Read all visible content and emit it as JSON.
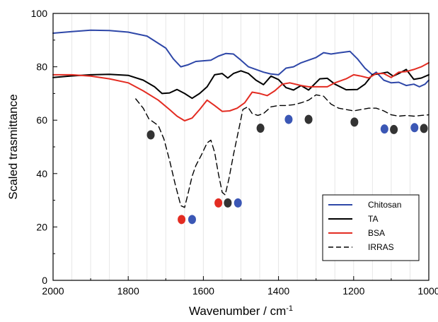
{
  "chart_data": {
    "type": "line",
    "xlabel": "Wavenumber / cm",
    "xlabel_superscript": "-1",
    "ylabel": "Scaled trasmittance",
    "xlim": [
      2000,
      1000
    ],
    "ylim": [
      0,
      100
    ],
    "x_reversed": true,
    "grid": "vertical lines every 50 cm-1",
    "legend_position": "bottom-right",
    "x_ticks": [
      "2000",
      "1800",
      "1600",
      "1400",
      "1200",
      "1000"
    ],
    "y_ticks": [
      "0",
      "20",
      "40",
      "60",
      "80",
      "100"
    ],
    "series": [
      {
        "name": "Chitosan",
        "color": "#2e47a8",
        "dash": "solid",
        "points": [
          [
            2000,
            92.6
          ],
          [
            1950,
            93.2
          ],
          [
            1900,
            93.7
          ],
          [
            1850,
            93.6
          ],
          [
            1800,
            93.0
          ],
          [
            1750,
            91.5
          ],
          [
            1700,
            87.0
          ],
          [
            1680,
            83.0
          ],
          [
            1660,
            80.0
          ],
          [
            1640,
            80.8
          ],
          [
            1620,
            82.0
          ],
          [
            1580,
            82.5
          ],
          [
            1560,
            84.0
          ],
          [
            1540,
            85.0
          ],
          [
            1520,
            84.8
          ],
          [
            1500,
            82.5
          ],
          [
            1480,
            80.0
          ],
          [
            1440,
            78.0
          ],
          [
            1420,
            77.3
          ],
          [
            1400,
            77.0
          ],
          [
            1380,
            79.5
          ],
          [
            1360,
            80.0
          ],
          [
            1340,
            81.5
          ],
          [
            1320,
            82.5
          ],
          [
            1300,
            83.5
          ],
          [
            1280,
            85.3
          ],
          [
            1260,
            84.8
          ],
          [
            1240,
            85.2
          ],
          [
            1210,
            85.8
          ],
          [
            1190,
            83.0
          ],
          [
            1170,
            79.5
          ],
          [
            1150,
            77.0
          ],
          [
            1140,
            78.0
          ],
          [
            1120,
            75.0
          ],
          [
            1100,
            74.0
          ],
          [
            1080,
            74.2
          ],
          [
            1060,
            73.0
          ],
          [
            1040,
            73.5
          ],
          [
            1025,
            72.5
          ],
          [
            1010,
            73.5
          ],
          [
            1000,
            75.0
          ]
        ]
      },
      {
        "name": "TA",
        "color": "#000000",
        "dash": "solid",
        "points": [
          [
            2000,
            76.0
          ],
          [
            1950,
            76.6
          ],
          [
            1900,
            77.0
          ],
          [
            1850,
            77.2
          ],
          [
            1800,
            76.8
          ],
          [
            1760,
            75.0
          ],
          [
            1730,
            72.5
          ],
          [
            1710,
            70.0
          ],
          [
            1690,
            70.2
          ],
          [
            1670,
            71.5
          ],
          [
            1650,
            70.0
          ],
          [
            1630,
            68.2
          ],
          [
            1610,
            70.0
          ],
          [
            1590,
            72.5
          ],
          [
            1570,
            77.0
          ],
          [
            1550,
            77.5
          ],
          [
            1535,
            75.8
          ],
          [
            1520,
            77.5
          ],
          [
            1500,
            78.5
          ],
          [
            1480,
            77.5
          ],
          [
            1460,
            75.0
          ],
          [
            1440,
            73.3
          ],
          [
            1420,
            76.5
          ],
          [
            1400,
            75.2
          ],
          [
            1380,
            72.2
          ],
          [
            1360,
            71.3
          ],
          [
            1340,
            73.0
          ],
          [
            1320,
            71.3
          ],
          [
            1290,
            75.5
          ],
          [
            1270,
            75.7
          ],
          [
            1250,
            73.5
          ],
          [
            1220,
            71.4
          ],
          [
            1190,
            71.5
          ],
          [
            1170,
            73.5
          ],
          [
            1150,
            77.0
          ],
          [
            1130,
            77.5
          ],
          [
            1110,
            78.0
          ],
          [
            1095,
            76.5
          ],
          [
            1080,
            77.5
          ],
          [
            1060,
            79.0
          ],
          [
            1040,
            75.3
          ],
          [
            1020,
            75.8
          ],
          [
            1000,
            77.0
          ]
        ]
      },
      {
        "name": "BSA",
        "color": "#e32c22",
        "dash": "solid",
        "points": [
          [
            2000,
            77.0
          ],
          [
            1950,
            77.0
          ],
          [
            1900,
            76.5
          ],
          [
            1850,
            75.5
          ],
          [
            1800,
            74.0
          ],
          [
            1760,
            71.0
          ],
          [
            1720,
            67.5
          ],
          [
            1690,
            64.0
          ],
          [
            1670,
            61.5
          ],
          [
            1650,
            59.8
          ],
          [
            1630,
            60.8
          ],
          [
            1610,
            64.0
          ],
          [
            1590,
            67.5
          ],
          [
            1570,
            65.5
          ],
          [
            1550,
            63.3
          ],
          [
            1530,
            63.5
          ],
          [
            1510,
            64.5
          ],
          [
            1490,
            66.5
          ],
          [
            1470,
            70.5
          ],
          [
            1450,
            70.0
          ],
          [
            1430,
            69.2
          ],
          [
            1410,
            71.0
          ],
          [
            1390,
            73.5
          ],
          [
            1370,
            74.0
          ],
          [
            1340,
            73.0
          ],
          [
            1320,
            72.5
          ],
          [
            1290,
            72.5
          ],
          [
            1270,
            72.5
          ],
          [
            1250,
            74.0
          ],
          [
            1220,
            75.5
          ],
          [
            1200,
            77.0
          ],
          [
            1180,
            76.5
          ],
          [
            1160,
            75.8
          ],
          [
            1140,
            77.5
          ],
          [
            1120,
            77.5
          ],
          [
            1100,
            76.0
          ],
          [
            1080,
            78.0
          ],
          [
            1060,
            78.2
          ],
          [
            1040,
            79.0
          ],
          [
            1020,
            80.0
          ],
          [
            1000,
            81.5
          ]
        ]
      },
      {
        "name": "IRRAS",
        "color": "#000000",
        "dash": "dashed",
        "points": [
          [
            1780,
            68.0
          ],
          [
            1760,
            64.5
          ],
          [
            1745,
            60.5
          ],
          [
            1735,
            59.5
          ],
          [
            1720,
            58.0
          ],
          [
            1705,
            53.0
          ],
          [
            1690,
            45.0
          ],
          [
            1675,
            36.0
          ],
          [
            1660,
            28.0
          ],
          [
            1650,
            27.3
          ],
          [
            1640,
            33.0
          ],
          [
            1630,
            39.0
          ],
          [
            1620,
            43.0
          ],
          [
            1605,
            47.0
          ],
          [
            1590,
            51.5
          ],
          [
            1580,
            52.5
          ],
          [
            1570,
            48.0
          ],
          [
            1560,
            40.0
          ],
          [
            1550,
            33.0
          ],
          [
            1542,
            32.0
          ],
          [
            1532,
            38.0
          ],
          [
            1520,
            47.0
          ],
          [
            1505,
            57.0
          ],
          [
            1495,
            64.0
          ],
          [
            1482,
            65.0
          ],
          [
            1470,
            62.5
          ],
          [
            1455,
            61.8
          ],
          [
            1440,
            62.5
          ],
          [
            1420,
            65.0
          ],
          [
            1400,
            65.5
          ],
          [
            1380,
            65.5
          ],
          [
            1360,
            65.8
          ],
          [
            1340,
            66.5
          ],
          [
            1320,
            67.5
          ],
          [
            1300,
            69.5
          ],
          [
            1280,
            69.0
          ],
          [
            1260,
            66.0
          ],
          [
            1240,
            64.5
          ],
          [
            1220,
            64.0
          ],
          [
            1200,
            63.5
          ],
          [
            1180,
            64.0
          ],
          [
            1160,
            64.5
          ],
          [
            1140,
            64.5
          ],
          [
            1120,
            63.5
          ],
          [
            1100,
            62.0
          ],
          [
            1080,
            61.5
          ],
          [
            1060,
            61.8
          ],
          [
            1040,
            61.5
          ],
          [
            1020,
            61.8
          ],
          [
            1000,
            62.0
          ]
        ]
      }
    ],
    "markers": [
      {
        "x": 1740,
        "y": 54.5,
        "color": "#333333"
      },
      {
        "x": 1658,
        "y": 22.8,
        "color": "#e32c22"
      },
      {
        "x": 1630,
        "y": 22.8,
        "color": "#3b57b5"
      },
      {
        "x": 1560,
        "y": 29.0,
        "color": "#e32c22"
      },
      {
        "x": 1535,
        "y": 29.0,
        "color": "#333333"
      },
      {
        "x": 1508,
        "y": 29.0,
        "color": "#3b57b5"
      },
      {
        "x": 1448,
        "y": 57.0,
        "color": "#333333"
      },
      {
        "x": 1373,
        "y": 60.3,
        "color": "#3b57b5"
      },
      {
        "x": 1320,
        "y": 60.3,
        "color": "#333333"
      },
      {
        "x": 1198,
        "y": 59.3,
        "color": "#333333"
      },
      {
        "x": 1118,
        "y": 56.7,
        "color": "#3b57b5"
      },
      {
        "x": 1093,
        "y": 56.5,
        "color": "#333333"
      },
      {
        "x": 1038,
        "y": 57.2,
        "color": "#3b57b5"
      },
      {
        "x": 1013,
        "y": 56.9,
        "color": "#333333"
      }
    ]
  }
}
